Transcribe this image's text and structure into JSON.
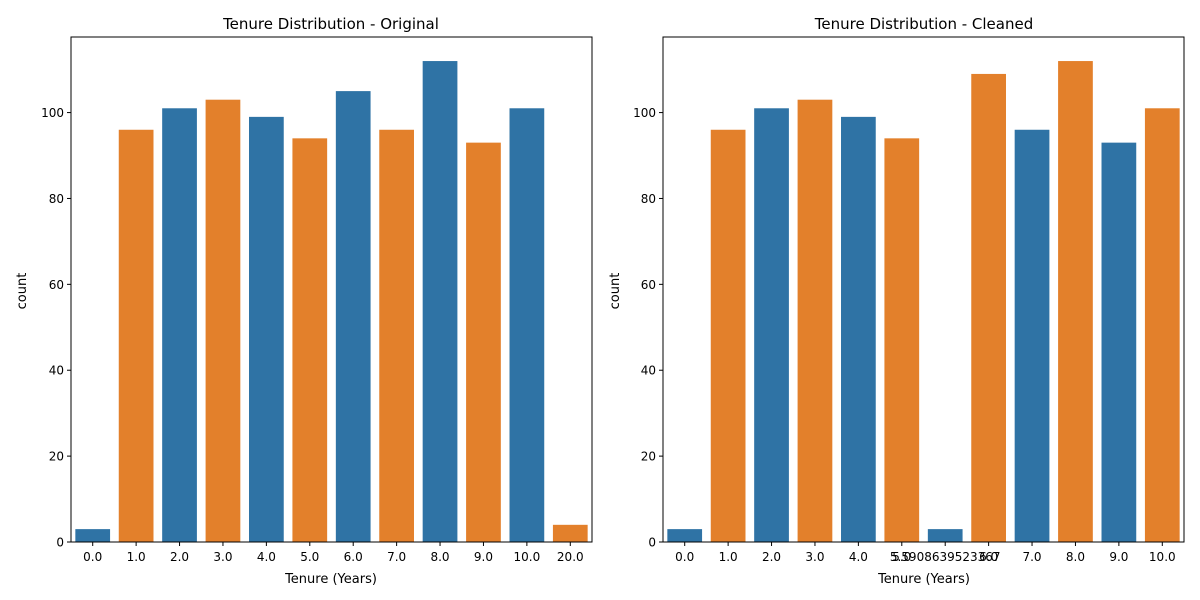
{
  "colors": {
    "blue": "#2f73a5",
    "orange": "#e3802b",
    "axis": "#000000"
  },
  "chart_data": [
    {
      "type": "bar",
      "title": "Tenure Distribution - Original",
      "xlabel": "Tenure (Years)",
      "ylabel": "count",
      "ylim": [
        0,
        117.6
      ],
      "yticks": [
        0,
        20,
        40,
        60,
        80,
        100
      ],
      "grid": false,
      "categories": [
        "0.0",
        "1.0",
        "2.0",
        "3.0",
        "4.0",
        "5.0",
        "6.0",
        "7.0",
        "8.0",
        "9.0",
        "10.0",
        "20.0"
      ],
      "values": [
        3,
        96,
        101,
        103,
        99,
        94,
        105,
        96,
        112,
        93,
        101,
        4
      ],
      "bar_colors": [
        "blue",
        "orange",
        "blue",
        "orange",
        "blue",
        "orange",
        "blue",
        "orange",
        "blue",
        "orange",
        "blue",
        "orange"
      ]
    },
    {
      "type": "bar",
      "title": "Tenure Distribution - Cleaned",
      "xlabel": "Tenure (Years)",
      "ylabel": "count",
      "ylim": [
        0,
        117.6
      ],
      "yticks": [
        0,
        20,
        40,
        60,
        80,
        100
      ],
      "grid": false,
      "categories": [
        "0.0",
        "1.0",
        "2.0",
        "3.0",
        "4.0",
        "5.0",
        "5.5908639523367",
        "6.0",
        "7.0",
        "8.0",
        "9.0",
        "10.0"
      ],
      "values": [
        3,
        96,
        101,
        103,
        99,
        94,
        3,
        109,
        96,
        112,
        93,
        101
      ],
      "bar_colors": [
        "blue",
        "orange",
        "blue",
        "orange",
        "blue",
        "orange",
        "blue",
        "orange",
        "blue",
        "orange",
        "blue",
        "orange"
      ]
    }
  ]
}
